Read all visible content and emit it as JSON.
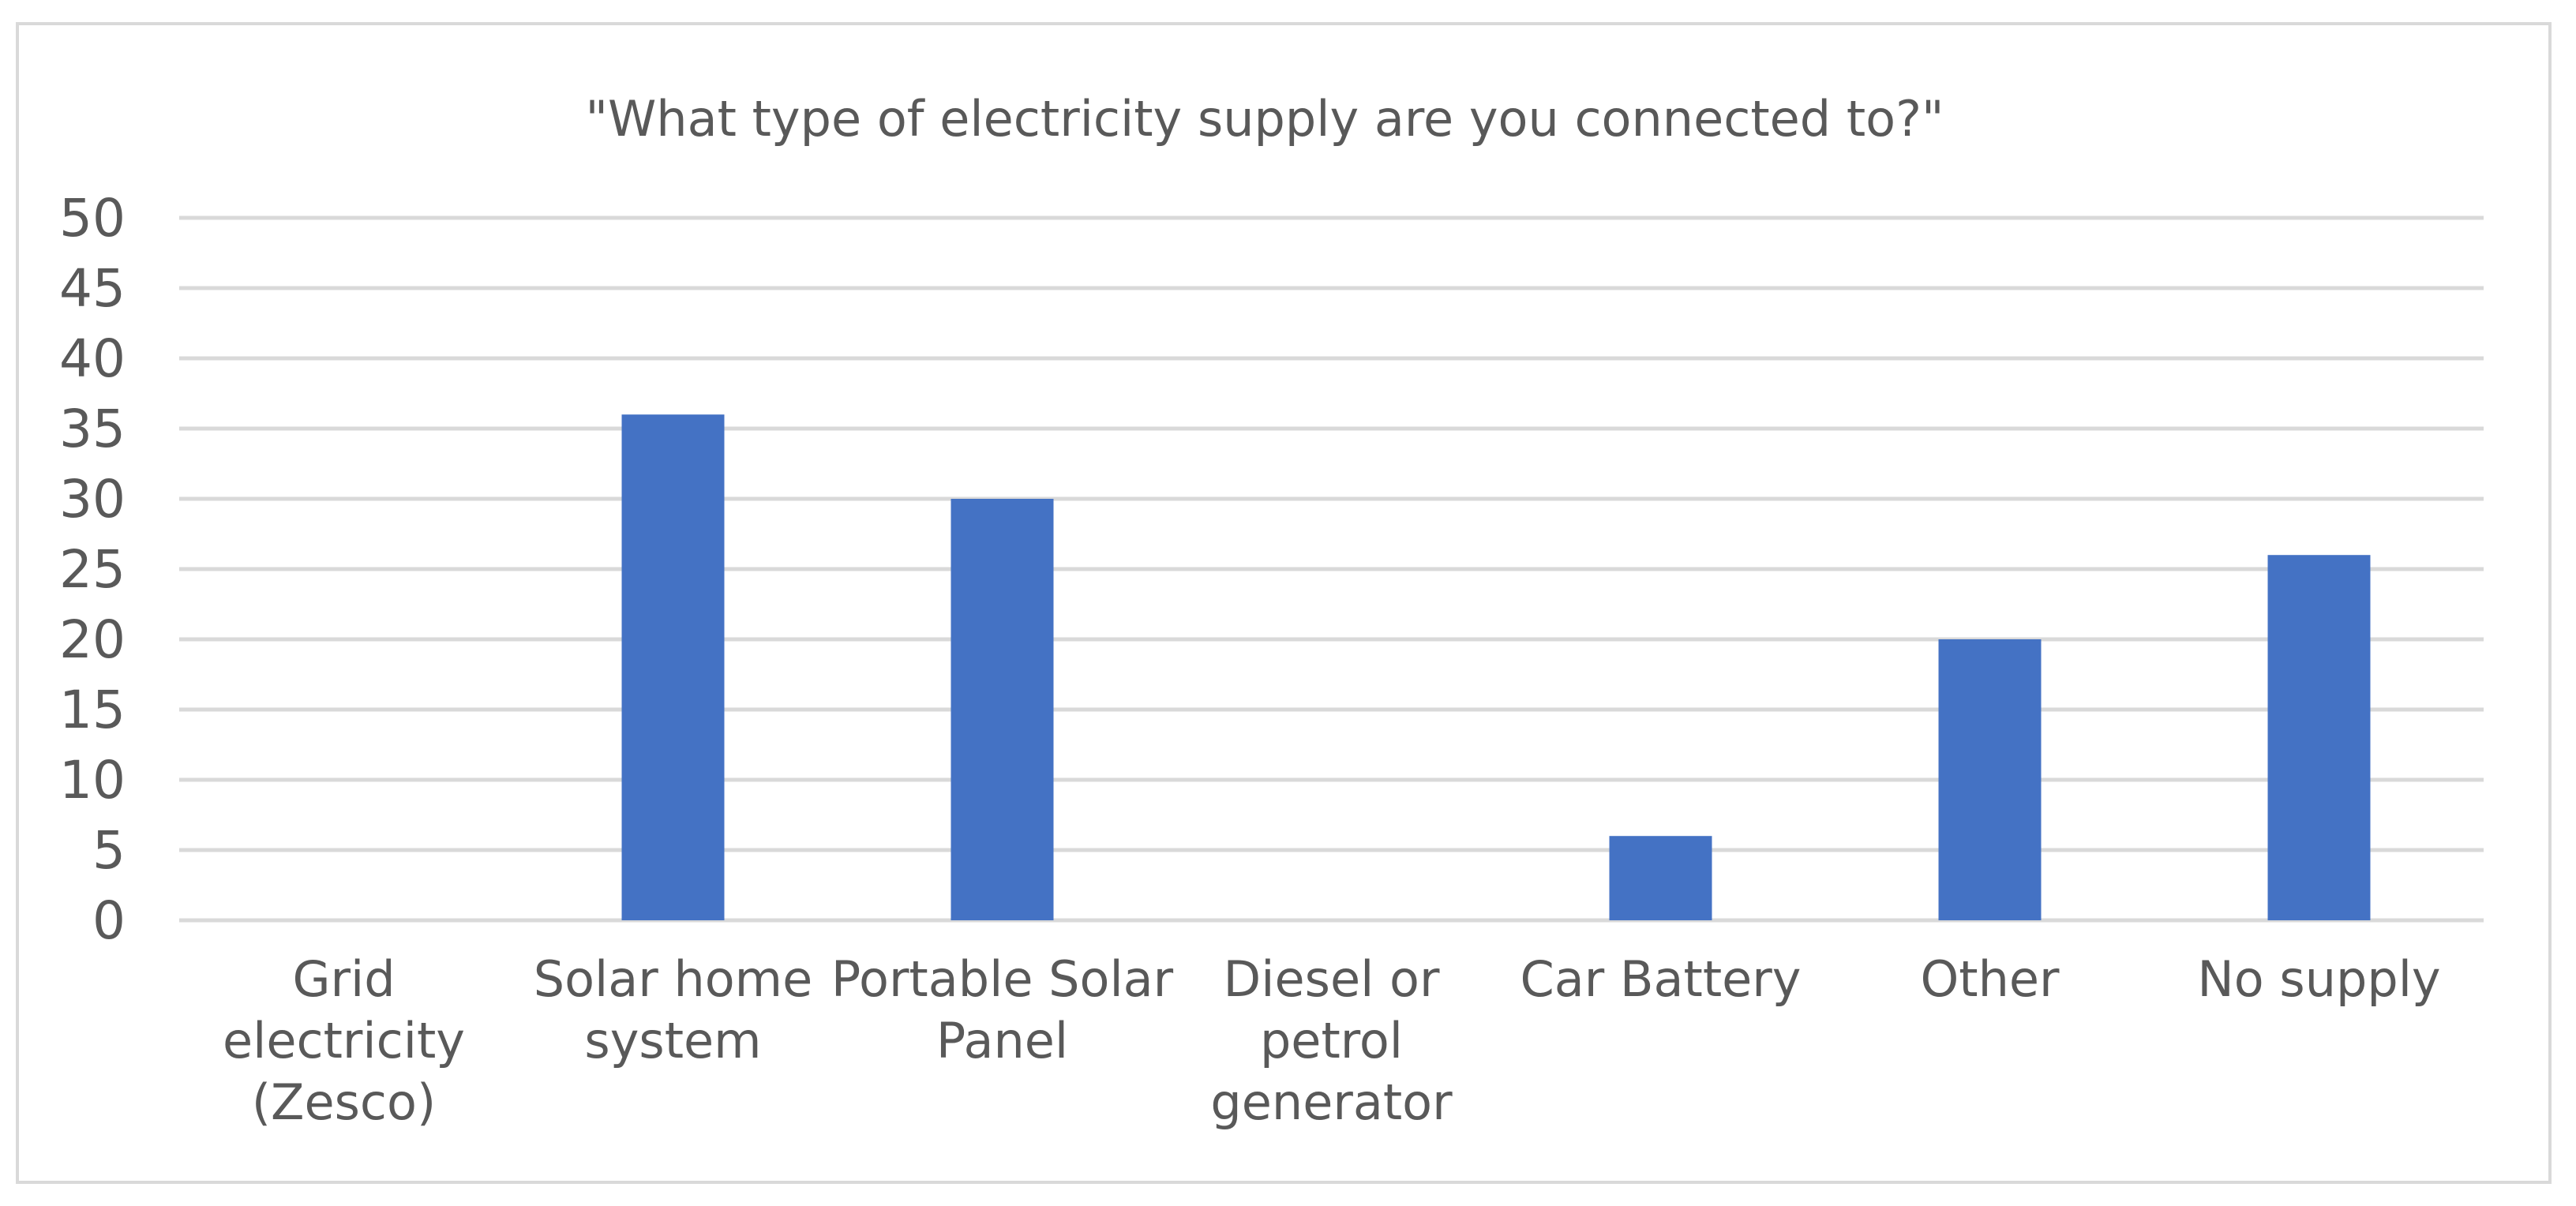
{
  "chart_data": {
    "type": "bar",
    "title": "\"What type of electricity supply are you connected to?\"",
    "xlabel": "",
    "ylabel": "",
    "categories": [
      "Grid electricity (Zesco)",
      "Solar home system",
      "Portable Solar Panel",
      "Diesel or petrol generator",
      "Car Battery",
      "Other",
      "No supply"
    ],
    "category_label_lines": [
      [
        "Grid",
        "electricity",
        "(Zesco)"
      ],
      [
        "Solar home",
        "system"
      ],
      [
        "Portable Solar",
        "Panel"
      ],
      [
        "Diesel or",
        "petrol",
        "generator"
      ],
      [
        "Car Battery"
      ],
      [
        "Other"
      ],
      [
        "No supply"
      ]
    ],
    "values": [
      0,
      36,
      30,
      0,
      6,
      20,
      26
    ],
    "ylim": [
      0,
      50
    ],
    "yticks": [
      0,
      5,
      10,
      15,
      20,
      25,
      30,
      35,
      40,
      45,
      50
    ],
    "grid": true,
    "legend": "none",
    "bar_color": "#4472c4",
    "grid_color": "#d9d9d9",
    "text_color": "#595959"
  }
}
